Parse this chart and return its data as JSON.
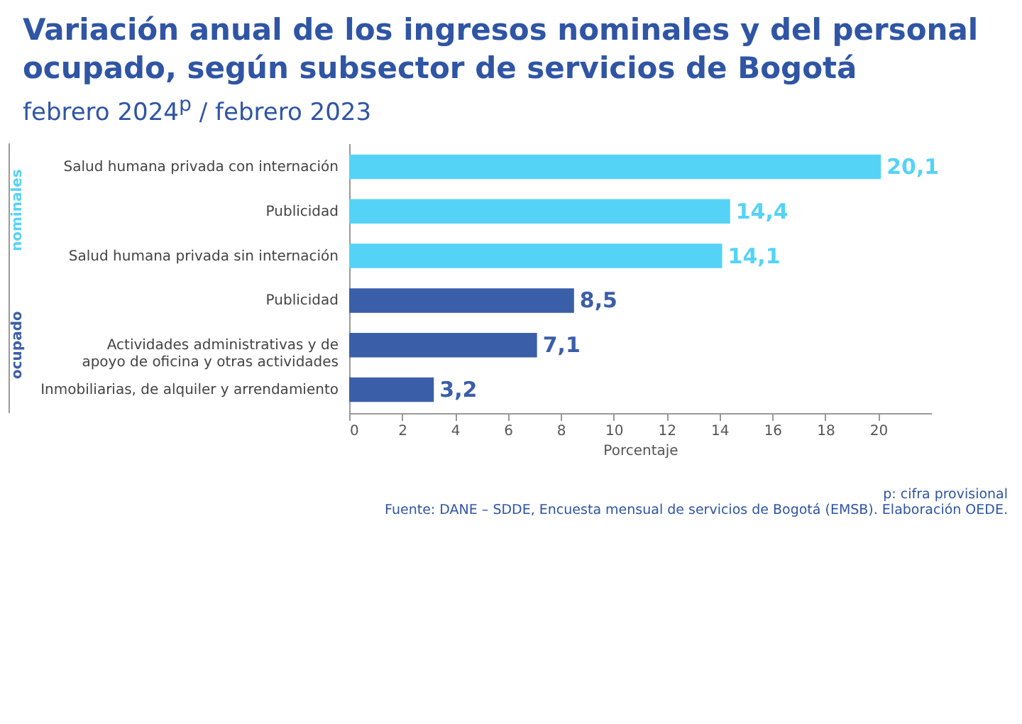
{
  "chart_data": {
    "type": "bar",
    "orientation": "horizontal",
    "title": "Variación anual de los ingresos nominales y del personal ocupado, según subsector de servicios de Bogotá",
    "subtitle": "febrero 2024$^{p}$ / febrero 2023",
    "xlabel": "Porcentaje",
    "categories": [
      "Salud humana privada con internación",
      "Publicidad",
      "Salud humana privada sin internación",
      "Publicidad",
      "Actividades administrativas y de apoyo de oficina y otras actividades",
      "Inmobiliarias, de alquiler y arrendamiento"
    ],
    "series": [
      {
        "name": "nominales",
        "color": "#55d3f7",
        "values": [
          20.1,
          14.4,
          14.1,
          null,
          null,
          null
        ],
        "value_labels": [
          "20,1",
          "14,4",
          "14,1",
          null,
          null,
          null
        ]
      },
      {
        "name": "ocupado",
        "color": "#3b5ea8",
        "values": [
          null,
          null,
          null,
          8.5,
          7.1,
          3.2
        ],
        "value_labels": [
          null,
          null,
          null,
          "8,5",
          "7,1",
          "3,2"
        ]
      }
    ],
    "xlim": [
      0,
      22
    ],
    "xticks": [
      0,
      2,
      4,
      6,
      8,
      10,
      12,
      14,
      16,
      18,
      20
    ],
    "legend": false,
    "grid": false,
    "annotations": [
      "p: cifra provisional",
      "Fuente: DANE – SDDE, Encuesta mensual de servicios de Bogotá (EMSB). Elaboración OEDE."
    ]
  }
}
